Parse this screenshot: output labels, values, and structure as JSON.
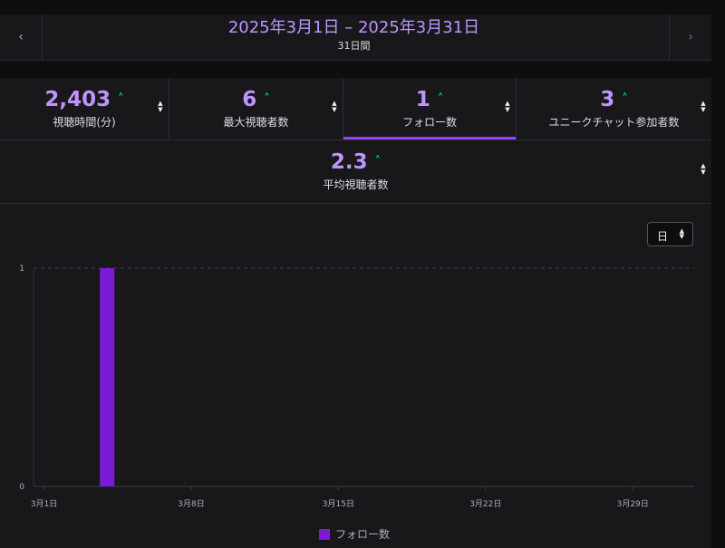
{
  "header": {
    "range_title": "2025年3月1日 – 2025年3月31日",
    "range_sub": "31日間",
    "prev_icon": "‹",
    "next_icon": "›"
  },
  "stats": [
    {
      "value": "2,403",
      "label": "視聴時間(分)",
      "trend": "up",
      "active": false
    },
    {
      "value": "6",
      "label": "最大視聴者数",
      "trend": "up",
      "active": false
    },
    {
      "value": "1",
      "label": "フォロー数",
      "trend": "up",
      "active": true
    },
    {
      "value": "3",
      "label": "ユニークチャット参加者数",
      "trend": "up",
      "active": false
    }
  ],
  "stat_extra": {
    "value": "2.3",
    "label": "平均視聴者数",
    "trend": "up"
  },
  "period_select": {
    "value": "日"
  },
  "colors": {
    "accent": "#bf94ff",
    "bar": "#7a1bd6",
    "trend_up": "#00f593",
    "active_underline": "#9147ff"
  },
  "chart_data": {
    "type": "bar",
    "series": [
      {
        "name": "フォロー数",
        "values": [
          0,
          0,
          0,
          1,
          0,
          0,
          0,
          0,
          0,
          0,
          0,
          0,
          0,
          0,
          0,
          0,
          0,
          0,
          0,
          0,
          0,
          0,
          0,
          0,
          0,
          0,
          0,
          0,
          0,
          0,
          0
        ]
      }
    ],
    "categories": [
      "3月1日",
      "3月2日",
      "3月3日",
      "3月4日",
      "3月5日",
      "3月6日",
      "3月7日",
      "3月8日",
      "3月9日",
      "3月10日",
      "3月11日",
      "3月12日",
      "3月13日",
      "3月14日",
      "3月15日",
      "3月16日",
      "3月17日",
      "3月18日",
      "3月19日",
      "3月20日",
      "3月21日",
      "3月22日",
      "3月23日",
      "3月24日",
      "3月25日",
      "3月26日",
      "3月27日",
      "3月28日",
      "3月29日",
      "3月30日",
      "3月31日"
    ],
    "x_ticks": [
      "3月1日",
      "3月8日",
      "3月15日",
      "3月22日",
      "3月29日"
    ],
    "y_ticks": [
      "0",
      "1"
    ],
    "ylim": [
      0,
      1
    ],
    "grid": true,
    "legend": "bottom-center",
    "title": "",
    "xlabel": "",
    "ylabel": ""
  }
}
